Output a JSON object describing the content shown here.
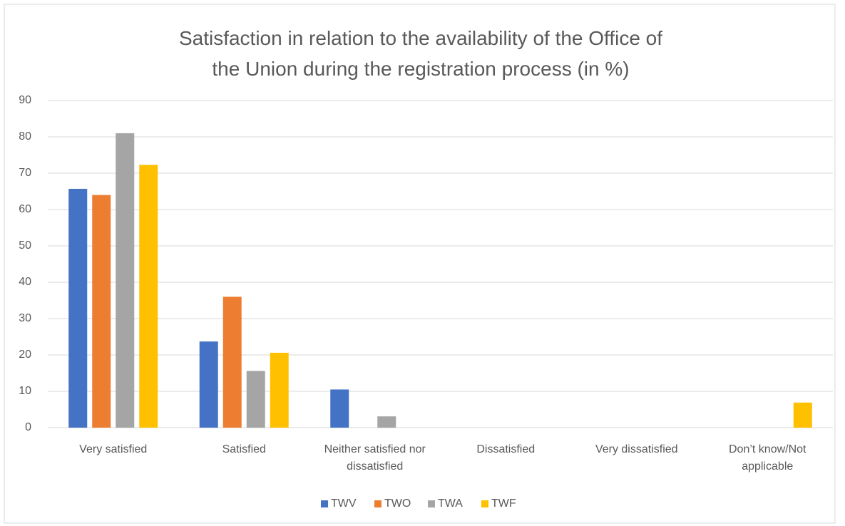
{
  "chart_data": {
    "type": "bar",
    "title": "Satisfaction in relation to the availability of the Office of the Union during the registration process (in %)",
    "categories": [
      "Very satisfied",
      "Satisfied",
      "Neither satisfied nor dissatisfied",
      "Dissatisfied",
      "Very dissatisfied",
      "Don’t know/Not applicable"
    ],
    "series": [
      {
        "name": "TWV",
        "color": "#4472c4",
        "values": [
          65.7,
          23.7,
          10.5,
          0,
          0,
          0
        ]
      },
      {
        "name": "TWO",
        "color": "#ed7d31",
        "values": [
          64,
          36,
          0,
          0,
          0,
          0
        ]
      },
      {
        "name": "TWA",
        "color": "#a5a5a5",
        "values": [
          81,
          15.6,
          3.1,
          0,
          0,
          0
        ]
      },
      {
        "name": "TWF",
        "color": "#ffc000",
        "values": [
          72.3,
          20.6,
          0,
          0,
          0,
          6.9
        ]
      }
    ],
    "ylim": [
      0,
      90
    ],
    "yticks": [
      0,
      10,
      20,
      30,
      40,
      50,
      60,
      70,
      80,
      90
    ],
    "grid": true,
    "legend": "bottom"
  }
}
